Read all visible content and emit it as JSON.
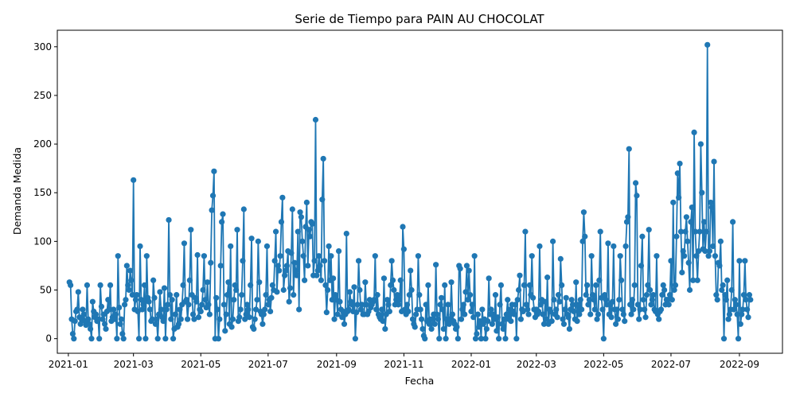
{
  "chart_data": {
    "type": "line",
    "title": "Serie de Tiempo para PAIN AU CHOCOLAT",
    "xlabel": "Fecha",
    "ylabel": "Demanda Medida",
    "xlim": [
      "2020-12-22",
      "2022-10-10"
    ],
    "ylim": [
      -15,
      317
    ],
    "x_ticks": [
      "2021-01",
      "2021-03",
      "2021-05",
      "2021-07",
      "2021-09",
      "2021-11",
      "2022-01",
      "2022-03",
      "2022-05",
      "2022-07",
      "2022-09"
    ],
    "y_ticks": [
      "0",
      "50",
      "100",
      "150",
      "200",
      "250",
      "300"
    ],
    "grid": false,
    "legend": "none",
    "markers": true,
    "color": "#1f77b4",
    "series": [
      {
        "start": "2021-01-02",
        "step_days": 1,
        "values": [
          58,
          55,
          20,
          5,
          0,
          18,
          28,
          30,
          48,
          22,
          15,
          20,
          30,
          25,
          18,
          14,
          55,
          20,
          15,
          10,
          0,
          38,
          28,
          22,
          25,
          18,
          20,
          0,
          55,
          33,
          20,
          25,
          15,
          10,
          28,
          40,
          30,
          55,
          18,
          22,
          30,
          20,
          25,
          0,
          85,
          32,
          15,
          20,
          5,
          0,
          35,
          40,
          75,
          55,
          50,
          70,
          60,
          45,
          163,
          30,
          40,
          45,
          28,
          0,
          95,
          40,
          30,
          35,
          55,
          0,
          85,
          42,
          38,
          30,
          18,
          20,
          60,
          42,
          15,
          20,
          0,
          25,
          48,
          30,
          22,
          18,
          52,
          0,
          30,
          35,
          122,
          45,
          20,
          40,
          0,
          10,
          25,
          45,
          12,
          15,
          30,
          20,
          35,
          55,
          98,
          38,
          40,
          20,
          35,
          60,
          112,
          45,
          25,
          20,
          42,
          38,
          86,
          22,
          30,
          28,
          35,
          50,
          85,
          40,
          32,
          58,
          35,
          25,
          78,
          132,
          147,
          172,
          0,
          42,
          30,
          0,
          20,
          75,
          120,
          128,
          35,
          8,
          25,
          45,
          58,
          15,
          95,
          12,
          20,
          40,
          55,
          50,
          112,
          18,
          22,
          30,
          45,
          80,
          133,
          20,
          25,
          35,
          30,
          22,
          55,
          103,
          12,
          10,
          20,
          30,
          40,
          100,
          58,
          28,
          25,
          15,
          25,
          30,
          45,
          95,
          35,
          40,
          28,
          42,
          55,
          50,
          80,
          110,
          48,
          75,
          70,
          85,
          120,
          145,
          50,
          65,
          70,
          75,
          90,
          38,
          52,
          88,
          133,
          45,
          78,
          70,
          65,
          110,
          30,
          130,
          125,
          100,
          85,
          60,
          115,
          140,
          75,
          112,
          105,
          120,
          118,
          65,
          80,
          225,
          65,
          70,
          85,
          75,
          60,
          143,
          185,
          80,
          55,
          27,
          50,
          95,
          60,
          85,
          40,
          62,
          20,
          45,
          40,
          25,
          90,
          38,
          30,
          22,
          28,
          15,
          25,
          108,
          28,
          30,
          48,
          38,
          35,
          28,
          53,
          0,
          27,
          35,
          80,
          50,
          30,
          35,
          25,
          25,
          58,
          35,
          25,
          28,
          40,
          32,
          35,
          38,
          40,
          85,
          30,
          45,
          25,
          22,
          20,
          30,
          18,
          62,
          10,
          25,
          40,
          35,
          28,
          55,
          80,
          60,
          50,
          35,
          40,
          45,
          35,
          40,
          60,
          28,
          115,
          92,
          30,
          25,
          35,
          28,
          45,
          70,
          50,
          20,
          15,
          12,
          25,
          30,
          85,
          45,
          30,
          20,
          10,
          3,
          0,
          35,
          18,
          55,
          15,
          20,
          10,
          20,
          25,
          15,
          76,
          25,
          20,
          0,
          35,
          42,
          30,
          10,
          55,
          0,
          20,
          35,
          15,
          20,
          58,
          25,
          18,
          15,
          10,
          12,
          0,
          75,
          72,
          20,
          30,
          35,
          25,
          48,
          75,
          40,
          70,
          45,
          28,
          35,
          22,
          85,
          0,
          5,
          25,
          12,
          18,
          0,
          30,
          15,
          20,
          0,
          10,
          18,
          62,
          25,
          30,
          15,
          25,
          20,
          45,
          8,
          22,
          0,
          35,
          55,
          15,
          10,
          20,
          0,
          25,
          40,
          20,
          30,
          18,
          35,
          28,
          25,
          35,
          0,
          40,
          50,
          65,
          20,
          30,
          28,
          55,
          110,
          35,
          30,
          25,
          55,
          45,
          85,
          42,
          30,
          22,
          30,
          25,
          28,
          95,
          35,
          40,
          25,
          15,
          38,
          20,
          63,
          15,
          30,
          28,
          18,
          100,
          40,
          25,
          30,
          22,
          45,
          38,
          82,
          55,
          20,
          15,
          30,
          42,
          25,
          22,
          10,
          30,
          40,
          35,
          28,
          20,
          58,
          18,
          35,
          25,
          40,
          30,
          100,
          130,
          105,
          45,
          55,
          35,
          40,
          25,
          85,
          45,
          40,
          30,
          55,
          20,
          25,
          60,
          110,
          42,
          30,
          0,
          45,
          40,
          35,
          98,
          25,
          35,
          22,
          38,
          95,
          30,
          15,
          30,
          20,
          40,
          85,
          60,
          30,
          25,
          18,
          95,
          120,
          125,
          195,
          35,
          25,
          40,
          30,
          55,
          160,
          147,
          35,
          20,
          30,
          75,
          105,
          40,
          30,
          22,
          45,
          55,
          112,
          50,
          35,
          40,
          45,
          30,
          28,
          85,
          25,
          20,
          28,
          30,
          45,
          55,
          50,
          35,
          40,
          40,
          35,
          45,
          80,
          40,
          140,
          50,
          55,
          105,
          170,
          145,
          180,
          110,
          68,
          90,
          85,
          110,
          125,
          100,
          78,
          50,
          120,
          135,
          60,
          212,
          110,
          85,
          60,
          90,
          110,
          200,
          150,
          92,
          120,
          90,
          110,
          302,
          85,
          90,
          140,
          135,
          95,
          182,
          85,
          45,
          40,
          78,
          75,
          100,
          50,
          55,
          0,
          45,
          40,
          60,
          20,
          25,
          30,
          50,
          120,
          30,
          40,
          35,
          25,
          0,
          80,
          15,
          25,
          30,
          45,
          80,
          40,
          30,
          22,
          45,
          40
        ]
      }
    ]
  }
}
